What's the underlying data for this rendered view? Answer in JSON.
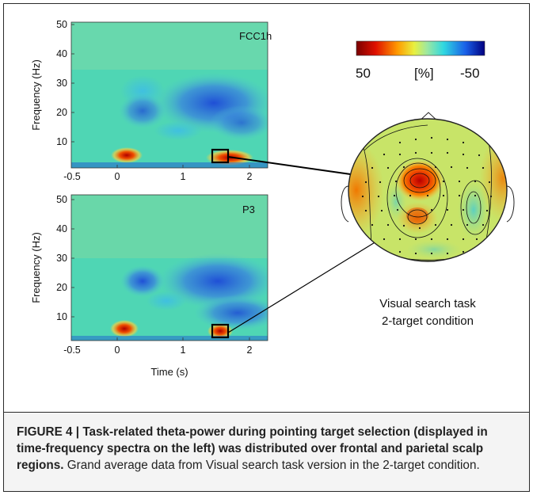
{
  "panels": [
    {
      "label": "FCC1h",
      "x_ticks": [
        "-0.5",
        "0",
        "1",
        "2"
      ],
      "y_ticks": [
        "50",
        "40",
        "30",
        "20",
        "10"
      ],
      "ylabel": "Frequency (Hz)"
    },
    {
      "label": "P3",
      "x_ticks": [
        "-0.5",
        "0",
        "1",
        "2"
      ],
      "y_ticks": [
        "50",
        "40",
        "30",
        "20",
        "10"
      ],
      "ylabel": "Frequency (Hz)",
      "xlabel": "Time (s)"
    }
  ],
  "colorbar": {
    "max_label": "50",
    "unit_label": "[%]",
    "min_label": "-50"
  },
  "topomap": {
    "caption_line1": "Visual search task",
    "caption_line2": "2-target condition"
  },
  "caption": {
    "label": "FIGURE 4 | ",
    "title": "Task-related theta-power during pointing target selection (displayed in time-frequency spectra on the left) was distributed over frontal and parietal scalp regions.",
    "body": " Grand average data from Visual search task version in the 2-target condition."
  },
  "colors": {
    "positive": "#c00000",
    "neutral": "#c8e468",
    "negative": "#1f4fd6",
    "background_field": "#4fd6b4"
  }
}
